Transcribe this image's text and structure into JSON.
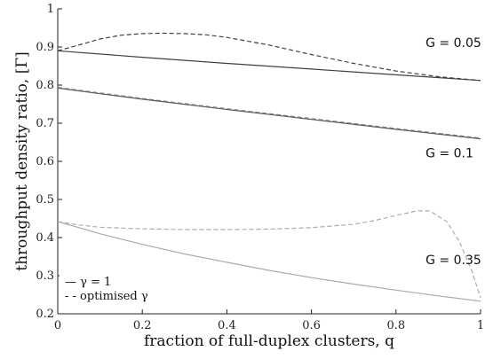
{
  "chart_data": {
    "type": "line",
    "xlabel": "fraction of full-duplex clusters, q",
    "ylabel": "throughput density ratio, [Γ]",
    "xlim": [
      0,
      1
    ],
    "ylim": [
      0.2,
      1
    ],
    "xticks": [
      0,
      0.2,
      0.4,
      0.6,
      0.8,
      1
    ],
    "xtick_labels": [
      "0",
      "0.2",
      "0.4",
      "0.6",
      "0.8",
      "1"
    ],
    "yticks": [
      0.2,
      0.3,
      0.4,
      0.5,
      0.6,
      0.7,
      0.8,
      0.9,
      1
    ],
    "ytick_labels": [
      "0.2",
      "0.3",
      "0.4",
      "0.5",
      "0.6",
      "0.7",
      "0.8",
      "0.9",
      "1"
    ],
    "grid": false,
    "legend_position": "bottom-left",
    "legend": [
      {
        "label": "— γ = 1",
        "style": "solid"
      },
      {
        "label": "- - optimised γ",
        "style": "dashed"
      }
    ],
    "annotations": [
      {
        "text": "G = 0.05",
        "x": 0.87,
        "y": 0.9
      },
      {
        "text": "G = 0.1",
        "x": 0.87,
        "y": 0.61
      },
      {
        "text": "G = 0.35",
        "x": 0.87,
        "y": 0.33
      }
    ],
    "series": [
      {
        "group": "G = 0.05",
        "style": "solid",
        "color": "#404040",
        "x": [
          0,
          0.2,
          0.4,
          0.6,
          0.8,
          1
        ],
        "y": [
          0.89,
          0.873,
          0.857,
          0.842,
          0.827,
          0.812
        ]
      },
      {
        "group": "G = 0.05",
        "style": "dashed",
        "color": "#404040",
        "x": [
          0,
          0.05,
          0.1,
          0.15,
          0.2,
          0.25,
          0.3,
          0.35,
          0.4,
          0.5,
          0.6,
          0.7,
          0.8,
          0.9,
          1
        ],
        "y": [
          0.89,
          0.905,
          0.921,
          0.931,
          0.935,
          0.936,
          0.935,
          0.932,
          0.925,
          0.905,
          0.88,
          0.857,
          0.837,
          0.822,
          0.812
        ]
      },
      {
        "group": "G = 0.1",
        "style": "solid",
        "color": "#5a5a5a",
        "x": [
          0,
          0.2,
          0.4,
          0.6,
          0.8,
          1
        ],
        "y": [
          0.792,
          0.763,
          0.736,
          0.71,
          0.684,
          0.659
        ]
      },
      {
        "group": "G = 0.1",
        "style": "dashed",
        "color": "#7a7a7a",
        "x": [
          0,
          0.2,
          0.4,
          0.6,
          0.8,
          1
        ],
        "y": [
          0.794,
          0.765,
          0.738,
          0.712,
          0.686,
          0.661
        ]
      },
      {
        "group": "G = 0.35",
        "style": "solid",
        "color": "#ababab",
        "x": [
          0,
          0.1,
          0.2,
          0.3,
          0.4,
          0.5,
          0.6,
          0.7,
          0.8,
          0.9,
          1
        ],
        "y": [
          0.442,
          0.41,
          0.382,
          0.357,
          0.335,
          0.314,
          0.295,
          0.278,
          0.262,
          0.247,
          0.233
        ]
      },
      {
        "group": "G = 0.35",
        "style": "dashed",
        "color": "#ababab",
        "x": [
          0,
          0.05,
          0.1,
          0.2,
          0.3,
          0.4,
          0.5,
          0.6,
          0.7,
          0.75,
          0.8,
          0.85,
          0.88,
          0.92,
          0.95,
          0.98,
          1
        ],
        "y": [
          0.442,
          0.433,
          0.427,
          0.423,
          0.421,
          0.421,
          0.422,
          0.426,
          0.435,
          0.445,
          0.458,
          0.47,
          0.47,
          0.442,
          0.39,
          0.31,
          0.242
        ]
      }
    ]
  }
}
